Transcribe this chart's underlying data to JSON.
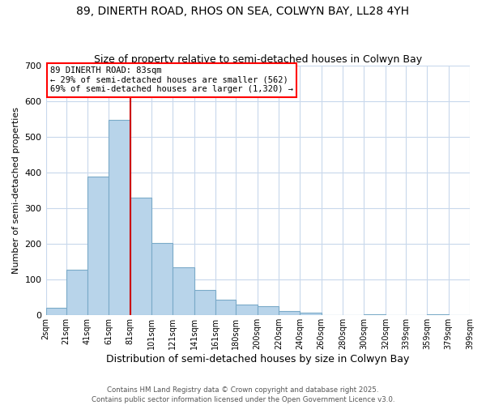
{
  "title": "89, DINERTH ROAD, RHOS ON SEA, COLWYN BAY, LL28 4YH",
  "subtitle": "Size of property relative to semi-detached houses in Colwyn Bay",
  "xlabel": "Distribution of semi-detached houses by size in Colwyn Bay",
  "ylabel": "Number of semi-detached properties",
  "bar_color": "#b8d4ea",
  "bar_edge_color": "#7aaac8",
  "annotation_title": "89 DINERTH ROAD: 83sqm",
  "annotation_line1": "← 29% of semi-detached houses are smaller (562)",
  "annotation_line2": "69% of semi-detached houses are larger (1,320) →",
  "vline_x": 81,
  "vline_color": "#cc0000",
  "bins": [
    2,
    21,
    41,
    61,
    81,
    101,
    121,
    141,
    161,
    180,
    200,
    220,
    240,
    260,
    280,
    300,
    320,
    339,
    359,
    379,
    399
  ],
  "counts": [
    20,
    128,
    388,
    548,
    330,
    203,
    135,
    70,
    44,
    30,
    25,
    13,
    7,
    0,
    0,
    4,
    0,
    0,
    4,
    0
  ],
  "tick_labels": [
    "2sqm",
    "21sqm",
    "41sqm",
    "61sqm",
    "81sqm",
    "101sqm",
    "121sqm",
    "141sqm",
    "161sqm",
    "180sqm",
    "200sqm",
    "220sqm",
    "240sqm",
    "260sqm",
    "280sqm",
    "300sqm",
    "320sqm",
    "339sqm",
    "359sqm",
    "379sqm",
    "399sqm"
  ],
  "ylim": [
    0,
    700
  ],
  "yticks": [
    0,
    100,
    200,
    300,
    400,
    500,
    600,
    700
  ],
  "footer1": "Contains HM Land Registry data © Crown copyright and database right 2025.",
  "footer2": "Contains public sector information licensed under the Open Government Licence v3.0.",
  "background_color": "#ffffff",
  "grid_color": "#c8d8ec"
}
